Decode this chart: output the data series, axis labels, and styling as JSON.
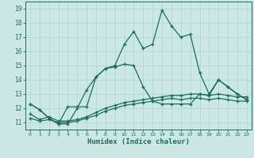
{
  "xlabel": "Humidex (Indice chaleur)",
  "bg_color": "#cce8e4",
  "line_color": "#1a6b62",
  "grid_color": "#afd4cf",
  "xlim": [
    -0.5,
    23.5
  ],
  "ylim": [
    10.5,
    19.5
  ],
  "xticks": [
    0,
    1,
    2,
    3,
    4,
    5,
    6,
    7,
    8,
    9,
    10,
    11,
    12,
    13,
    14,
    15,
    16,
    17,
    18,
    19,
    20,
    21,
    22,
    23
  ],
  "yticks": [
    11,
    12,
    13,
    14,
    15,
    16,
    17,
    18,
    19
  ],
  "series": [
    {
      "x": [
        0,
        1,
        2,
        3,
        4,
        5,
        6,
        7,
        8,
        9,
        10,
        11,
        12,
        13,
        14,
        15,
        16,
        17,
        18,
        19,
        20,
        21,
        22,
        23
      ],
      "y": [
        12.3,
        11.9,
        11.3,
        10.9,
        10.9,
        12.0,
        13.3,
        14.2,
        14.8,
        15.0,
        16.5,
        17.4,
        16.2,
        16.5,
        18.9,
        17.8,
        17.0,
        17.2,
        14.5,
        13.0,
        14.0,
        13.5,
        13.0,
        12.6
      ]
    },
    {
      "x": [
        0,
        1,
        2,
        3,
        4,
        5,
        6,
        7,
        8,
        9,
        10,
        11,
        12,
        13,
        14,
        15,
        16,
        17,
        18,
        19,
        20,
        21,
        22,
        23
      ],
      "y": [
        12.3,
        11.9,
        11.3,
        10.9,
        12.1,
        12.1,
        12.1,
        14.2,
        14.8,
        14.9,
        15.1,
        15.0,
        13.5,
        12.5,
        12.3,
        12.3,
        12.3,
        12.3,
        13.0,
        12.9,
        14.0,
        13.5,
        13.0,
        12.6
      ]
    },
    {
      "x": [
        0,
        1,
        2,
        3,
        4,
        5,
        6,
        7,
        8,
        9,
        10,
        11,
        12,
        13,
        14,
        15,
        16,
        17,
        18,
        19,
        20,
        21,
        22,
        23
      ],
      "y": [
        11.3,
        11.1,
        11.2,
        11.0,
        11.0,
        11.1,
        11.3,
        11.5,
        11.8,
        12.0,
        12.2,
        12.3,
        12.4,
        12.5,
        12.6,
        12.7,
        12.6,
        12.7,
        12.7,
        12.6,
        12.7,
        12.6,
        12.5,
        12.5
      ]
    },
    {
      "x": [
        0,
        1,
        2,
        3,
        4,
        5,
        6,
        7,
        8,
        9,
        10,
        11,
        12,
        13,
        14,
        15,
        16,
        17,
        18,
        19,
        20,
        21,
        22,
        23
      ],
      "y": [
        11.6,
        11.2,
        11.4,
        11.1,
        11.1,
        11.2,
        11.4,
        11.7,
        12.0,
        12.2,
        12.4,
        12.5,
        12.6,
        12.7,
        12.8,
        12.9,
        12.9,
        13.0,
        13.0,
        12.9,
        13.0,
        12.9,
        12.8,
        12.8
      ]
    }
  ]
}
